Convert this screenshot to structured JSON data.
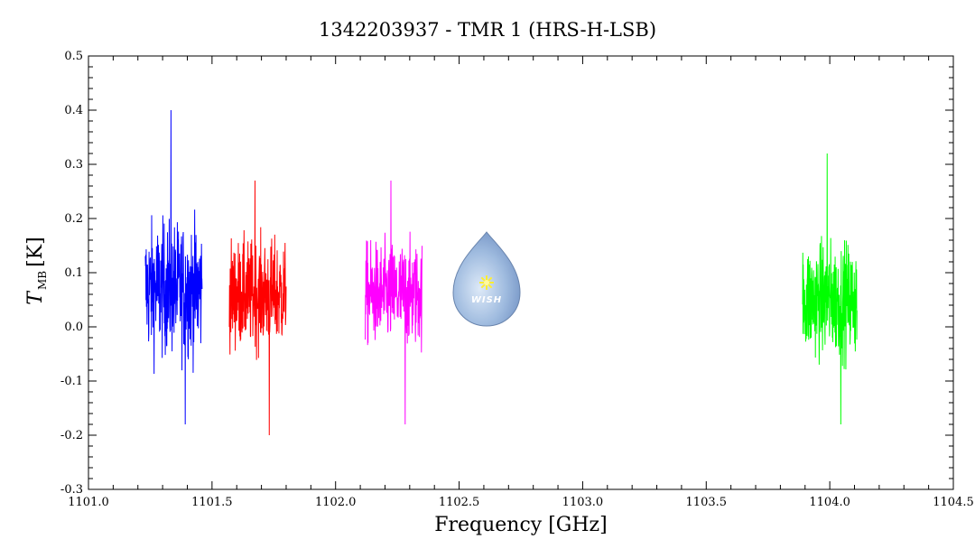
{
  "chart_data": {
    "type": "line",
    "title": "1342203937 - TMR 1 (HRS-H-LSB)",
    "xlabel": "Frequency [GHz]",
    "ylabel_main": "T",
    "ylabel_sub": "MB",
    "ylabel_unit": "[K]",
    "xlim": [
      1101.0,
      1104.5
    ],
    "ylim": [
      -0.3,
      0.5
    ],
    "x_ticks": [
      "1101.0",
      "1101.5",
      "1102.0",
      "1102.5",
      "1103.0",
      "1103.5",
      "1104.0",
      "1104.5"
    ],
    "y_ticks": [
      "-0.3",
      "-0.2",
      "-0.1",
      "0.0",
      "0.1",
      "0.2",
      "0.3",
      "0.4",
      "0.5"
    ],
    "grid": false,
    "series": [
      {
        "color": "#0000ff",
        "x_range": [
          1101.23,
          1101.46
        ],
        "mean": 0.07,
        "min": -0.18,
        "max": 0.4
      },
      {
        "color": "#ff0000",
        "x_range": [
          1101.57,
          1101.8
        ],
        "mean": 0.06,
        "min": -0.2,
        "max": 0.27
      },
      {
        "color": "#ff00ff",
        "x_range": [
          1102.12,
          1102.35
        ],
        "mean": 0.06,
        "min": -0.18,
        "max": 0.27
      },
      {
        "color": "#00ff00",
        "x_range": [
          1103.89,
          1104.11
        ],
        "mean": 0.05,
        "min": -0.18,
        "max": 0.32
      }
    ],
    "logo_text": "WISH"
  }
}
